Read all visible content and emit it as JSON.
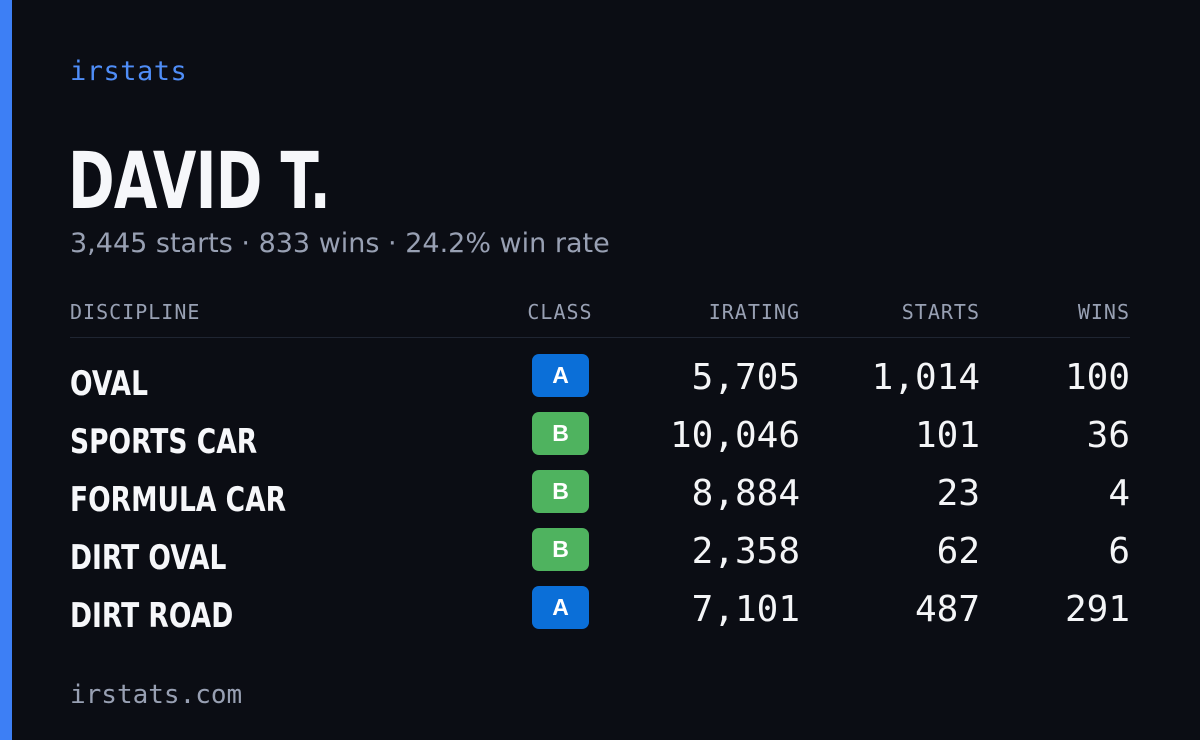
{
  "brand": "irstats",
  "driver": {
    "name": "DAVID T.",
    "summary": "3,445 starts · 833 wins · 24.2% win rate"
  },
  "table": {
    "headers": {
      "discipline": "DISCIPLINE",
      "class": "CLASS",
      "irating": "IRATING",
      "starts": "STARTS",
      "wins": "WINS"
    },
    "rows": [
      {
        "discipline": "OVAL",
        "class": "A",
        "irating": "5,705",
        "starts": "1,014",
        "wins": "100"
      },
      {
        "discipline": "SPORTS CAR",
        "class": "B",
        "irating": "10,046",
        "starts": "101",
        "wins": "36"
      },
      {
        "discipline": "FORMULA CAR",
        "class": "B",
        "irating": "8,884",
        "starts": "23",
        "wins": "4"
      },
      {
        "discipline": "DIRT OVAL",
        "class": "B",
        "irating": "2,358",
        "starts": "62",
        "wins": "6"
      },
      {
        "discipline": "DIRT ROAD",
        "class": "A",
        "irating": "7,101",
        "starts": "487",
        "wins": "291"
      }
    ]
  },
  "class_colors": {
    "A": "#0b6fd8",
    "B": "#4fb35f"
  },
  "footer": "irstats.com"
}
